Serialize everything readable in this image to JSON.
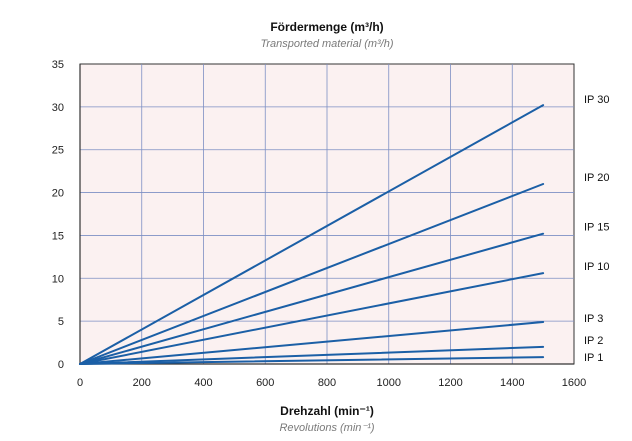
{
  "chart_data": {
    "type": "line",
    "title": "Fördermenge (m³/h)",
    "subtitle": "Transported material (m³/h)",
    "xlabel": "Drehzahl (min⁻¹)",
    "xlabel_sub": "Revolutions (min⁻¹)",
    "ylabel": "",
    "xlim": [
      0,
      1600
    ],
    "ylim": [
      0,
      35
    ],
    "x_ticks": [
      0,
      200,
      400,
      600,
      800,
      1000,
      1200,
      1400,
      1600
    ],
    "y_ticks": [
      0,
      5,
      10,
      15,
      20,
      25,
      30,
      35
    ],
    "grid": true,
    "legend_placement": "right-of-line-ends",
    "colors": {
      "plot_background": "#fbf1f1",
      "grid": "#7d8fc4",
      "line": "#1b5fa6",
      "axis": "#333333"
    },
    "series": [
      {
        "name": "IP 30",
        "x": [
          0,
          1500
        ],
        "y": [
          0,
          30.2
        ]
      },
      {
        "name": "IP 20",
        "x": [
          0,
          1500
        ],
        "y": [
          0,
          21.0
        ]
      },
      {
        "name": "IP 15",
        "x": [
          0,
          1500
        ],
        "y": [
          0,
          15.2
        ]
      },
      {
        "name": "IP 10",
        "x": [
          0,
          1500
        ],
        "y": [
          0,
          10.6
        ]
      },
      {
        "name": "IP 3",
        "x": [
          0,
          1500
        ],
        "y": [
          0,
          4.9
        ]
      },
      {
        "name": "IP 2",
        "x": [
          0,
          1500
        ],
        "y": [
          0,
          2.0
        ]
      },
      {
        "name": "IP 1",
        "x": [
          0,
          1500
        ],
        "y": [
          0,
          0.8
        ]
      }
    ]
  }
}
